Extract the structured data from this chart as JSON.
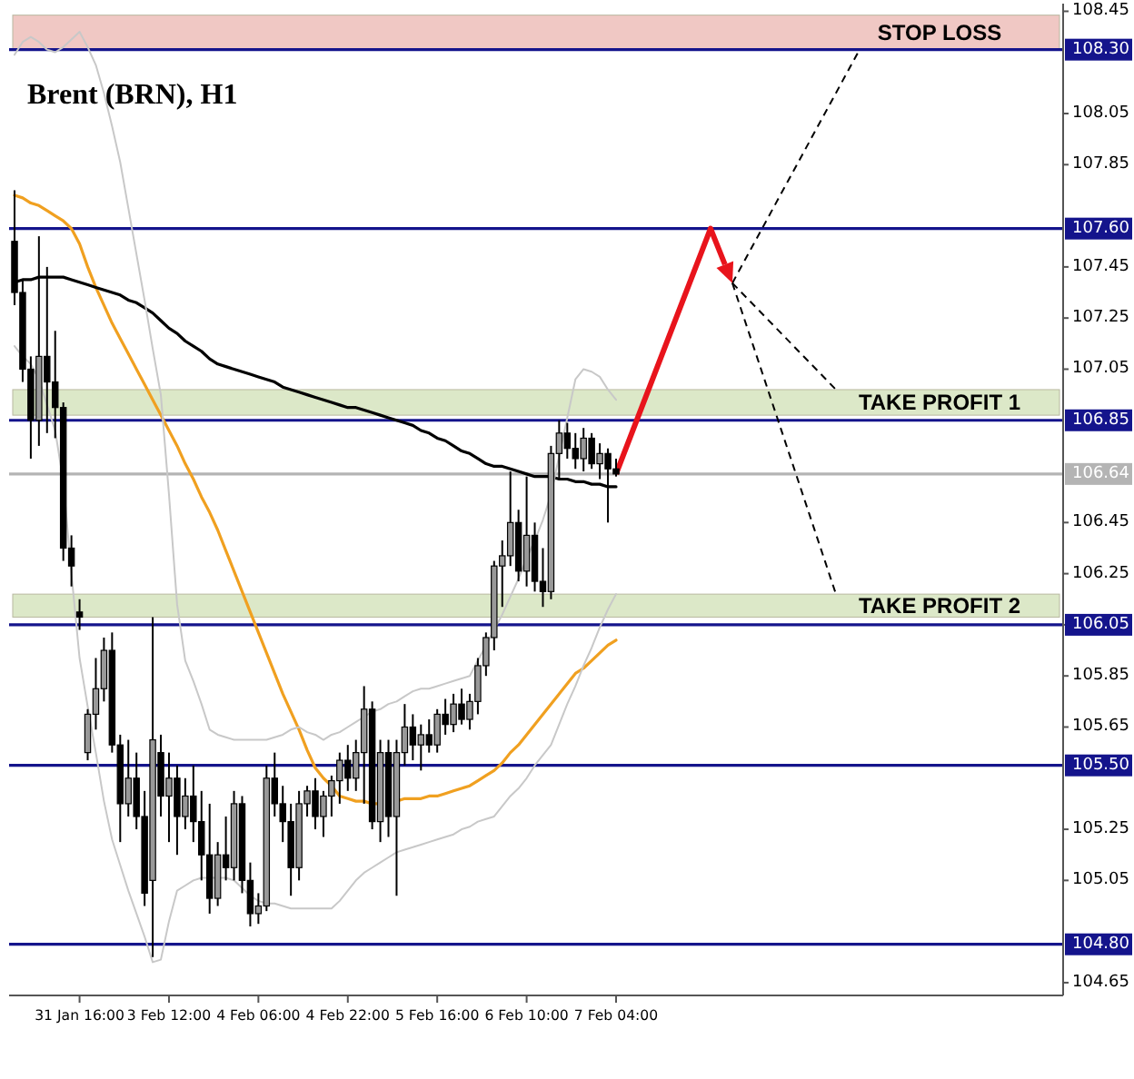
{
  "chart_data": {
    "type": "candlestick",
    "title": "Brent (BRN), H1",
    "categories": [
      null,
      null,
      null,
      null,
      null,
      null,
      null,
      null,
      "31 Jan 16:00",
      null,
      null,
      null,
      null,
      null,
      null,
      null,
      null,
      null,
      null,
      "3 Feb 12:00",
      null,
      null,
      null,
      null,
      null,
      null,
      null,
      null,
      null,
      null,
      "4 Feb 06:00",
      null,
      null,
      null,
      null,
      null,
      null,
      null,
      null,
      null,
      null,
      "4 Feb 22:00",
      null,
      null,
      null,
      null,
      null,
      null,
      null,
      null,
      null,
      null,
      "5 Feb 16:00",
      null,
      null,
      null,
      null,
      null,
      null,
      null,
      null,
      null,
      null,
      "6 Feb 10:00",
      null,
      null,
      null,
      null,
      null,
      null,
      null,
      null,
      null,
      null,
      "7 Feb 04:00"
    ],
    "ohlc": [
      [
        107.55,
        107.75,
        107.3,
        107.35
      ],
      [
        107.35,
        107.4,
        107.0,
        107.05
      ],
      [
        107.05,
        107.1,
        106.7,
        106.85
      ],
      [
        106.85,
        107.57,
        106.75,
        107.1
      ],
      [
        107.1,
        107.45,
        106.8,
        107.0
      ],
      [
        107.0,
        107.2,
        106.78,
        106.9
      ],
      [
        106.9,
        106.92,
        106.3,
        106.35
      ],
      [
        106.35,
        106.4,
        106.2,
        106.28
      ],
      [
        106.1,
        106.15,
        106.03,
        106.08
      ],
      [
        105.55,
        105.72,
        105.52,
        105.7
      ],
      [
        105.7,
        105.92,
        105.64,
        105.8
      ],
      [
        105.8,
        106.0,
        105.75,
        105.95
      ],
      [
        105.95,
        106.02,
        105.55,
        105.58
      ],
      [
        105.58,
        105.62,
        105.2,
        105.35
      ],
      [
        105.35,
        105.6,
        105.3,
        105.45
      ],
      [
        105.45,
        105.55,
        105.25,
        105.3
      ],
      [
        105.3,
        105.4,
        104.95,
        105.0
      ],
      [
        105.05,
        106.08,
        104.75,
        105.6
      ],
      [
        105.55,
        105.62,
        105.3,
        105.38
      ],
      [
        105.38,
        105.55,
        105.2,
        105.45
      ],
      [
        105.45,
        105.5,
        105.15,
        105.3
      ],
      [
        105.3,
        105.45,
        105.25,
        105.38
      ],
      [
        105.38,
        105.5,
        105.2,
        105.28
      ],
      [
        105.28,
        105.4,
        105.05,
        105.15
      ],
      [
        105.15,
        105.35,
        104.92,
        104.98
      ],
      [
        104.98,
        105.2,
        104.95,
        105.15
      ],
      [
        105.15,
        105.3,
        105.05,
        105.1
      ],
      [
        105.1,
        105.4,
        105.05,
        105.35
      ],
      [
        105.35,
        105.38,
        105.0,
        105.05
      ],
      [
        105.05,
        105.12,
        104.87,
        104.92
      ],
      [
        104.92,
        105.0,
        104.88,
        104.95
      ],
      [
        104.95,
        105.5,
        104.93,
        105.45
      ],
      [
        105.45,
        105.55,
        105.3,
        105.35
      ],
      [
        105.35,
        105.42,
        105.2,
        105.28
      ],
      [
        105.28,
        105.35,
        104.99,
        105.1
      ],
      [
        105.1,
        105.4,
        105.05,
        105.35
      ],
      [
        105.35,
        105.42,
        105.3,
        105.4
      ],
      [
        105.4,
        105.45,
        105.25,
        105.3
      ],
      [
        105.3,
        105.4,
        105.22,
        105.38
      ],
      [
        105.38,
        105.46,
        105.3,
        105.44
      ],
      [
        105.44,
        105.55,
        105.35,
        105.52
      ],
      [
        105.52,
        105.58,
        105.4,
        105.45
      ],
      [
        105.45,
        105.6,
        105.4,
        105.55
      ],
      [
        105.55,
        105.81,
        105.35,
        105.72
      ],
      [
        105.72,
        105.75,
        105.25,
        105.28
      ],
      [
        105.28,
        105.6,
        105.2,
        105.55
      ],
      [
        105.55,
        105.6,
        105.22,
        105.3
      ],
      [
        105.3,
        105.6,
        104.99,
        105.55
      ],
      [
        105.55,
        105.74,
        105.5,
        105.65
      ],
      [
        105.65,
        105.7,
        105.52,
        105.58
      ],
      [
        105.58,
        105.66,
        105.48,
        105.62
      ],
      [
        105.62,
        105.68,
        105.55,
        105.58
      ],
      [
        105.58,
        105.72,
        105.55,
        105.7
      ],
      [
        105.7,
        105.76,
        105.62,
        105.66
      ],
      [
        105.66,
        105.78,
        105.63,
        105.74
      ],
      [
        105.74,
        105.8,
        105.66,
        105.68
      ],
      [
        105.68,
        105.78,
        105.64,
        105.75
      ],
      [
        105.75,
        105.92,
        105.7,
        105.89
      ],
      [
        105.89,
        106.02,
        105.85,
        106.0
      ],
      [
        106.0,
        106.3,
        105.95,
        106.28
      ],
      [
        106.28,
        106.38,
        106.12,
        106.32
      ],
      [
        106.32,
        106.65,
        106.28,
        106.45
      ],
      [
        106.45,
        106.5,
        106.22,
        106.26
      ],
      [
        106.26,
        106.63,
        106.2,
        106.4
      ],
      [
        106.4,
        106.45,
        106.18,
        106.22
      ],
      [
        106.22,
        106.35,
        106.12,
        106.18
      ],
      [
        106.18,
        106.75,
        106.15,
        106.72
      ],
      [
        106.72,
        106.85,
        106.62,
        106.8
      ],
      [
        106.8,
        106.84,
        106.7,
        106.74
      ],
      [
        106.74,
        106.8,
        106.66,
        106.7
      ],
      [
        106.7,
        106.82,
        106.65,
        106.78
      ],
      [
        106.78,
        106.8,
        106.66,
        106.68
      ],
      [
        106.68,
        106.76,
        106.62,
        106.72
      ],
      [
        106.72,
        106.74,
        106.45,
        106.66
      ],
      [
        106.66,
        106.7,
        106.63,
        106.64
      ]
    ],
    "colors": [
      "#000000",
      "#000000",
      "#000000",
      "#999999",
      "#000000",
      "#000000",
      "#000000",
      "#000000",
      "#000000",
      "#999999",
      "#999999",
      "#999999",
      "#000000",
      "#000000",
      "#999999",
      "#000000",
      "#000000",
      "#999999",
      "#000000",
      "#999999",
      "#000000",
      "#999999",
      "#000000",
      "#000000",
      "#000000",
      "#999999",
      "#000000",
      "#999999",
      "#000000",
      "#000000",
      "#999999",
      "#999999",
      "#000000",
      "#000000",
      "#000000",
      "#999999",
      "#999999",
      "#000000",
      "#999999",
      "#999999",
      "#999999",
      "#000000",
      "#999999",
      "#999999",
      "#000000",
      "#999999",
      "#000000",
      "#999999",
      "#999999",
      "#000000",
      "#999999",
      "#000000",
      "#999999",
      "#000000",
      "#999999",
      "#000000",
      "#999999",
      "#999999",
      "#999999",
      "#999999",
      "#999999",
      "#999999",
      "#000000",
      "#999999",
      "#000000",
      "#000000",
      "#999999",
      "#999999",
      "#000000",
      "#000000",
      "#999999",
      "#000000",
      "#999999",
      "#000000",
      "#000000"
    ],
    "series": [
      {
        "type": "line",
        "color": "#f0a020",
        "values": [
          107.73,
          107.72,
          107.7,
          107.69,
          107.67,
          107.65,
          107.63,
          107.6,
          107.54,
          107.45,
          107.37,
          107.3,
          107.23,
          107.17,
          107.11,
          107.05,
          106.99,
          106.93,
          106.87,
          106.81,
          106.75,
          106.68,
          106.62,
          106.55,
          106.49,
          106.42,
          106.34,
          106.26,
          106.18,
          106.1,
          106.02,
          105.94,
          105.86,
          105.78,
          105.71,
          105.64,
          105.56,
          105.49,
          105.45,
          105.42,
          105.38,
          105.37,
          105.36,
          105.36,
          105.35,
          105.35,
          null,
          105.36,
          105.37,
          105.37,
          105.37,
          105.38,
          105.38,
          105.39,
          105.4,
          105.41,
          105.42,
          105.44,
          105.46,
          105.48,
          105.51,
          105.55,
          105.58,
          105.62,
          105.66,
          105.7,
          105.74,
          105.78,
          105.82,
          105.86,
          105.88,
          105.91,
          105.94,
          105.97,
          105.99
        ]
      },
      {
        "type": "line",
        "color": "#000000",
        "values": [
          107.39,
          107.4,
          107.4,
          107.41,
          107.41,
          107.41,
          107.41,
          107.4,
          107.39,
          107.38,
          107.37,
          107.36,
          107.35,
          107.34,
          107.32,
          107.31,
          107.29,
          107.27,
          107.24,
          107.21,
          107.19,
          107.16,
          107.14,
          107.12,
          107.09,
          107.07,
          107.06,
          107.05,
          107.04,
          107.03,
          107.02,
          107.01,
          107.0,
          106.98,
          106.97,
          106.96,
          106.95,
          106.94,
          106.93,
          106.92,
          106.91,
          106.9,
          106.9,
          106.89,
          106.88,
          106.87,
          106.86,
          106.85,
          106.84,
          106.83,
          106.81,
          106.8,
          106.78,
          106.77,
          106.75,
          106.73,
          106.72,
          106.7,
          106.68,
          106.67,
          106.67,
          106.66,
          106.65,
          106.64,
          106.63,
          106.63,
          106.63,
          106.62,
          106.62,
          106.61,
          106.61,
          106.6,
          106.6,
          106.59,
          106.59
        ]
      },
      {
        "type": "line",
        "color": "#c8c8c8",
        "values": [
          108.28,
          108.33,
          108.35,
          108.33,
          108.3,
          108.29,
          108.31,
          108.34,
          108.37,
          108.31,
          108.24,
          108.13,
          108.0,
          107.86,
          107.68,
          107.5,
          107.32,
          107.13,
          106.95,
          106.56,
          106.13,
          105.91,
          105.83,
          105.74,
          105.64,
          105.62,
          105.61,
          105.6,
          105.6,
          105.6,
          105.6,
          105.6,
          105.61,
          105.62,
          105.64,
          105.65,
          105.63,
          105.62,
          105.6,
          105.62,
          105.63,
          105.65,
          105.67,
          105.69,
          105.71,
          105.72,
          105.74,
          105.75,
          105.77,
          105.79,
          105.8,
          105.8,
          105.81,
          105.82,
          105.83,
          105.84,
          105.85,
          105.91,
          105.97,
          106.03,
          106.09,
          106.16,
          106.23,
          106.31,
          106.38,
          106.46,
          106.56,
          106.71,
          106.86,
          107.01,
          107.05,
          107.04,
          107.02,
          106.97,
          106.93
        ]
      },
      {
        "type": "line",
        "color": "#c8c8c8",
        "values": [
          107.14,
          107.1,
          107.07,
          107.01,
          106.91,
          106.81,
          106.61,
          106.25,
          105.92,
          105.73,
          105.55,
          105.36,
          105.21,
          105.11,
          105.01,
          104.92,
          104.83,
          104.73,
          104.74,
          104.89,
          105.01,
          105.03,
          105.05,
          105.06,
          105.06,
          105.06,
          105.06,
          105.05,
          105.02,
          104.99,
          104.97,
          104.96,
          104.96,
          104.95,
          104.94,
          104.94,
          104.94,
          104.94,
          104.94,
          104.94,
          104.97,
          105.01,
          105.05,
          105.08,
          105.1,
          105.12,
          105.14,
          105.16,
          105.17,
          105.18,
          105.19,
          105.2,
          105.21,
          105.22,
          105.23,
          105.25,
          105.26,
          105.28,
          105.29,
          105.3,
          105.34,
          105.38,
          105.41,
          105.45,
          105.5,
          105.54,
          105.58,
          105.66,
          105.74,
          105.81,
          105.89,
          105.96,
          106.04,
          106.11,
          106.17
        ]
      }
    ],
    "ylim": [
      104.6,
      108.48
    ],
    "yticks": [
      108.45,
      108.05,
      107.85,
      107.45,
      107.25,
      107.05,
      106.45,
      106.25,
      {
        "value": 106.05,
        "label": null
      },
      105.85,
      105.65,
      105.25,
      105.05,
      104.65
    ],
    "ref_lines": [
      {
        "axis": "y",
        "value": 108.3,
        "label": "108.30",
        "color": "#14148c"
      },
      {
        "axis": "y",
        "value": 107.6,
        "label": "107.60",
        "color": "#14148c"
      },
      {
        "axis": "y",
        "value": 106.85,
        "label": "106.85",
        "color": "#14148c"
      },
      {
        "axis": "y",
        "value": 106.64,
        "label": "106.64",
        "color": "#b4b4b4"
      },
      {
        "axis": "y",
        "value": 106.05,
        "label": "106.05",
        "color": "#14148c"
      },
      {
        "axis": "y",
        "value": 105.5,
        "label": "105.50",
        "color": "#14148c"
      },
      {
        "axis": "y",
        "value": 104.8,
        "label": "104.80",
        "color": "#14148c"
      }
    ],
    "bands": [
      {
        "axis": "y",
        "from": 108.3,
        "to": 108.435,
        "label": "STOP LOSS",
        "color": "#f0c8c4"
      },
      {
        "axis": "y",
        "from": 106.87,
        "to": 106.97,
        "label": "TAKE PROFIT 1",
        "color": "#dce8c8"
      },
      {
        "axis": "y",
        "from": 106.08,
        "to": 106.17,
        "label": "TAKE PROFIT 2",
        "color": "#dce8c8"
      }
    ],
    "grid": false
  }
}
